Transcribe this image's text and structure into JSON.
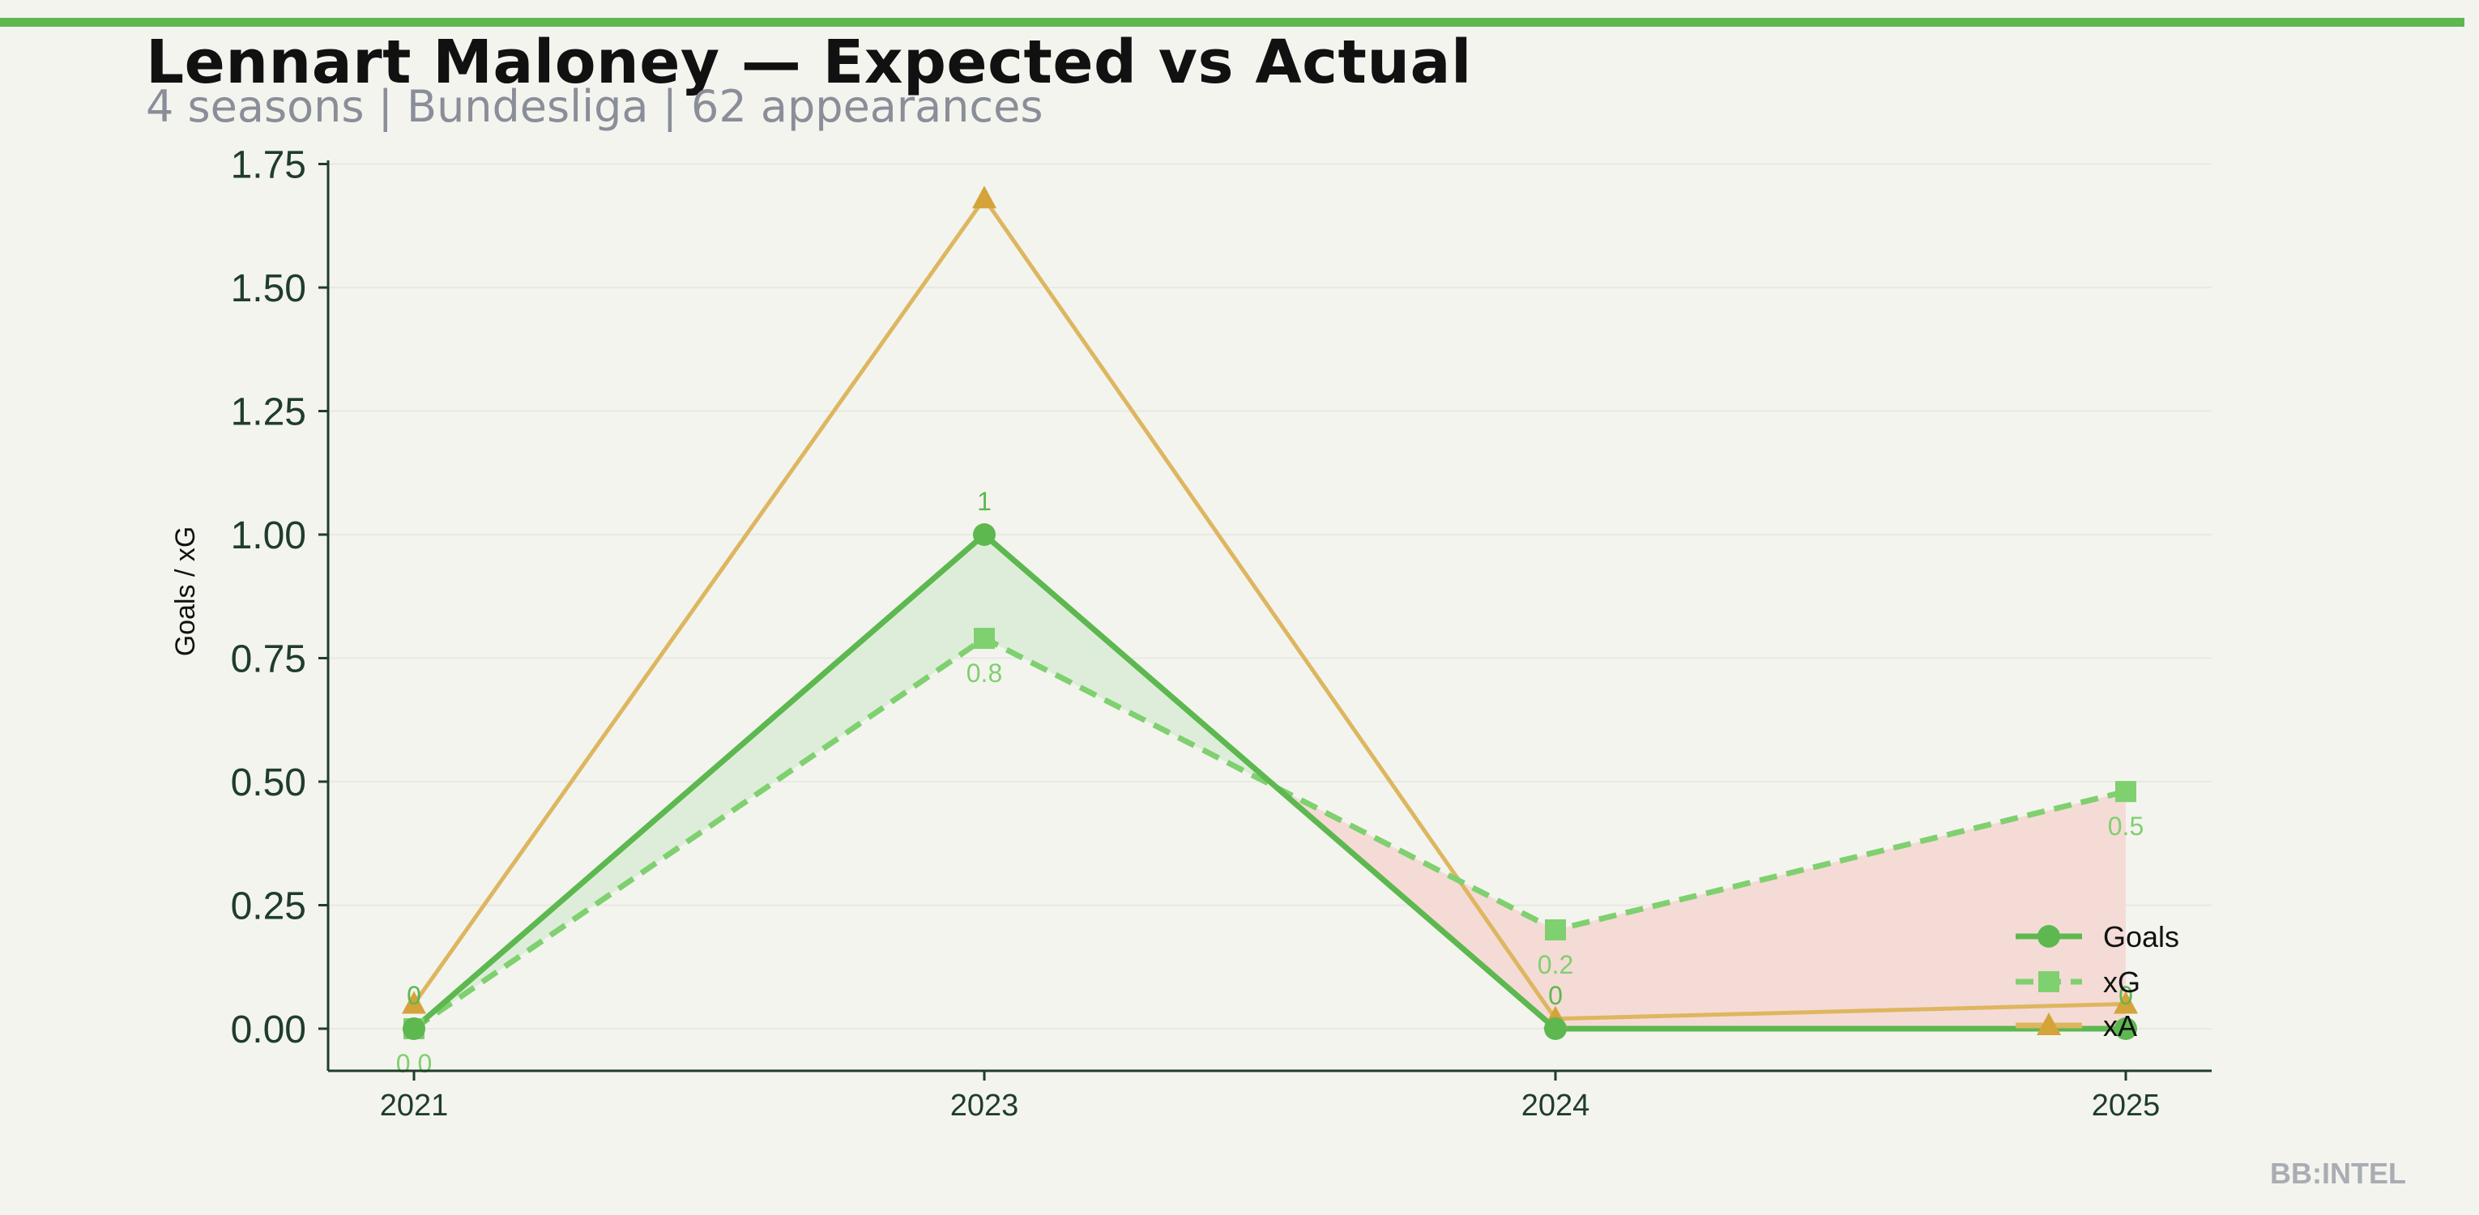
{
  "page": {
    "title": "Lennart Maloney — Expected vs Actual",
    "subtitle": "4 seasons | Bundesliga | 62 appearances",
    "brand": "BB:INTEL"
  },
  "colors": {
    "accent": "#5cb84f",
    "goals": "#5cb84f",
    "xg": "#7fd06f",
    "xa": "#ddb65f",
    "xa_marker": "#d4a33a",
    "overperform_fill": "#dcecd6",
    "underperform_fill": "#f5d8d3",
    "axis": "#1f3d2a",
    "background": "#f4f4ef"
  },
  "chart_data": {
    "type": "line",
    "categories": [
      "2021",
      "2023",
      "2024",
      "2025"
    ],
    "ylabel": "Goals / xG",
    "xlabel": "",
    "ylim": [
      -0.04,
      1.75
    ],
    "yticks": [
      "0.00",
      "0.25",
      "0.50",
      "0.75",
      "1.00",
      "1.25",
      "1.50",
      "1.75"
    ],
    "grid": "horizontal",
    "legend_position": "lower-right",
    "series": [
      {
        "name": "Goals",
        "values": [
          0,
          1,
          0,
          0
        ],
        "labels": [
          "0",
          "1",
          "0",
          "0"
        ],
        "color": "#5cb84f",
        "marker": "circle",
        "style": "solid"
      },
      {
        "name": "xG",
        "values": [
          0.0,
          0.79,
          0.2,
          0.48
        ],
        "labels": [
          "0.0",
          "0.8",
          "0.2",
          "0.5"
        ],
        "color": "#7fd06f",
        "marker": "square",
        "style": "dashed"
      },
      {
        "name": "xA",
        "values": [
          0.05,
          1.68,
          0.02,
          0.05
        ],
        "color": "#ddb65f",
        "marker": "triangle",
        "style": "solid"
      }
    ]
  }
}
